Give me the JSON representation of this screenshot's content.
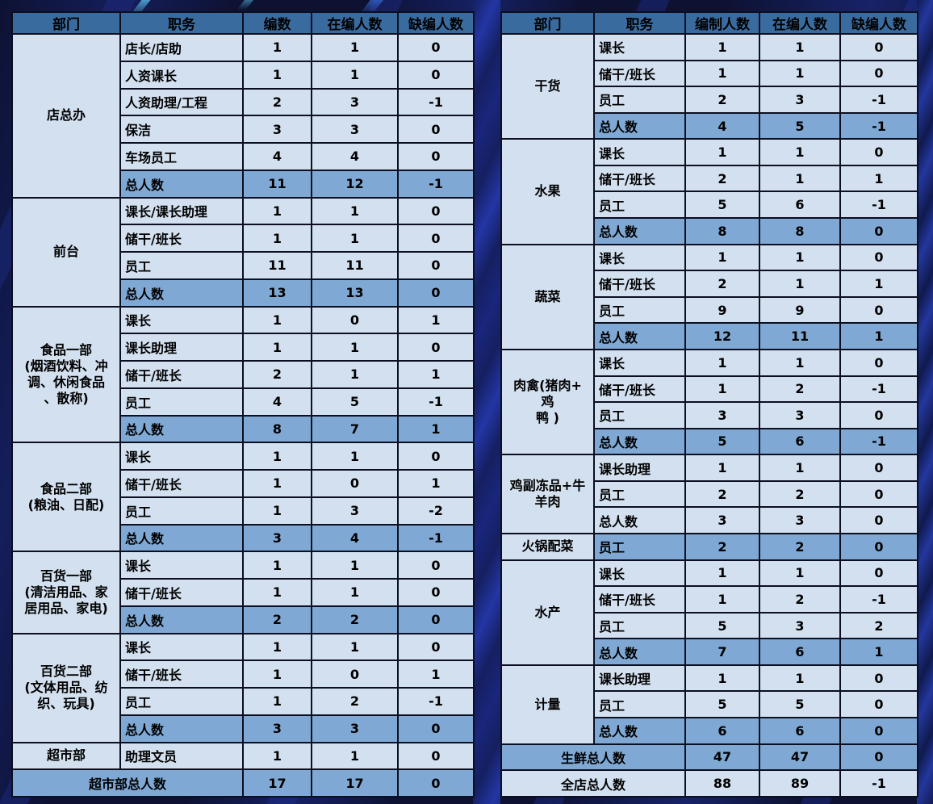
{
  "colors": {
    "background": "#0d1233",
    "header_bg": "#3a6b9e",
    "cell_bg": "#d3e0ef",
    "total_row_bg": "#7fa9d4",
    "border": "#0b0f1f",
    "text": "#000000"
  },
  "left_table": {
    "headers": [
      "部门",
      "职务",
      "编数",
      "在编人数",
      "缺编人数"
    ],
    "groups": [
      {
        "dept": "店总办",
        "rows": [
          {
            "pos": "店长/店助",
            "values": [
              "1",
              "1",
              "0"
            ],
            "shaded": false
          },
          {
            "pos": "人资课长",
            "values": [
              "1",
              "1",
              "0"
            ],
            "shaded": false
          },
          {
            "pos": "人资助理/工程",
            "values": [
              "2",
              "3",
              "-1"
            ],
            "shaded": false
          },
          {
            "pos": "保洁",
            "values": [
              "3",
              "3",
              "0"
            ],
            "shaded": false
          },
          {
            "pos": "车场员工",
            "values": [
              "4",
              "4",
              "0"
            ],
            "shaded": false
          },
          {
            "pos": "总人数",
            "values": [
              "11",
              "12",
              "-1"
            ],
            "shaded": true
          }
        ]
      },
      {
        "dept": "前台",
        "rows": [
          {
            "pos": "课长/课长助理",
            "values": [
              "1",
              "1",
              "0"
            ],
            "shaded": false
          },
          {
            "pos": "储干/班长",
            "values": [
              "1",
              "1",
              "0"
            ],
            "shaded": false
          },
          {
            "pos": "员工",
            "values": [
              "11",
              "11",
              "0"
            ],
            "shaded": false
          },
          {
            "pos": "总人数",
            "values": [
              "13",
              "13",
              "0"
            ],
            "shaded": true
          }
        ]
      },
      {
        "dept": "食品一部\n(烟酒饮料、冲\n调、休闲食品\n、散称)",
        "rows": [
          {
            "pos": "课长",
            "values": [
              "1",
              "0",
              "1"
            ],
            "shaded": false
          },
          {
            "pos": "课长助理",
            "values": [
              "1",
              "1",
              "0"
            ],
            "shaded": false
          },
          {
            "pos": "储干/班长",
            "values": [
              "2",
              "1",
              "1"
            ],
            "shaded": false
          },
          {
            "pos": "员工",
            "values": [
              "4",
              "5",
              "-1"
            ],
            "shaded": false
          },
          {
            "pos": "总人数",
            "values": [
              "8",
              "7",
              "1"
            ],
            "shaded": true
          }
        ]
      },
      {
        "dept": "食品二部\n(粮油、日配)",
        "rows": [
          {
            "pos": "课长",
            "values": [
              "1",
              "1",
              "0"
            ],
            "shaded": false
          },
          {
            "pos": "储干/班长",
            "values": [
              "1",
              "0",
              "1"
            ],
            "shaded": false
          },
          {
            "pos": "员工",
            "values": [
              "1",
              "3",
              "-2"
            ],
            "shaded": false
          },
          {
            "pos": "总人数",
            "values": [
              "3",
              "4",
              "-1"
            ],
            "shaded": true
          }
        ]
      },
      {
        "dept": "百货一部\n(清洁用品、家\n居用品、家电)",
        "rows": [
          {
            "pos": "课长",
            "values": [
              "1",
              "1",
              "0"
            ],
            "shaded": false
          },
          {
            "pos": "储干/班长",
            "values": [
              "1",
              "1",
              "0"
            ],
            "shaded": false
          },
          {
            "pos": "总人数",
            "values": [
              "2",
              "2",
              "0"
            ],
            "shaded": true
          }
        ]
      },
      {
        "dept": "百货二部\n(文体用品、纺\n织、玩具)",
        "rows": [
          {
            "pos": "课长",
            "values": [
              "1",
              "1",
              "0"
            ],
            "shaded": false
          },
          {
            "pos": "储干/班长",
            "values": [
              "1",
              "0",
              "1"
            ],
            "shaded": false
          },
          {
            "pos": "员工",
            "values": [
              "1",
              "2",
              "-1"
            ],
            "shaded": false
          },
          {
            "pos": "总人数",
            "values": [
              "3",
              "3",
              "0"
            ],
            "shaded": true
          }
        ]
      },
      {
        "dept": "超市部",
        "rows": [
          {
            "pos": "助理文员",
            "values": [
              "1",
              "1",
              "0"
            ],
            "shaded": false
          }
        ]
      }
    ],
    "footers": [
      {
        "label": "超市部总人数",
        "values": [
          "17",
          "17",
          "0"
        ],
        "shaded": true
      }
    ]
  },
  "right_table": {
    "headers": [
      "部门",
      "职务",
      "编制人数",
      "在编人数",
      "缺编人数"
    ],
    "groups": [
      {
        "dept": "干货",
        "rows": [
          {
            "pos": "课长",
            "values": [
              "1",
              "1",
              "0"
            ],
            "shaded": false
          },
          {
            "pos": "储干/班长",
            "values": [
              "1",
              "1",
              "0"
            ],
            "shaded": false
          },
          {
            "pos": "员工",
            "values": [
              "2",
              "3",
              "-1"
            ],
            "shaded": false
          },
          {
            "pos": "总人数",
            "values": [
              "4",
              "5",
              "-1"
            ],
            "shaded": true
          }
        ]
      },
      {
        "dept": "水果",
        "rows": [
          {
            "pos": "课长",
            "values": [
              "1",
              "1",
              "0"
            ],
            "shaded": false
          },
          {
            "pos": "储干/班长",
            "values": [
              "2",
              "1",
              "1"
            ],
            "shaded": false
          },
          {
            "pos": "员工",
            "values": [
              "5",
              "6",
              "-1"
            ],
            "shaded": false
          },
          {
            "pos": "总人数",
            "values": [
              "8",
              "8",
              "0"
            ],
            "shaded": true
          }
        ]
      },
      {
        "dept": "蔬菜",
        "rows": [
          {
            "pos": "课长",
            "values": [
              "1",
              "1",
              "0"
            ],
            "shaded": false
          },
          {
            "pos": "储干/班长",
            "values": [
              "2",
              "1",
              "1"
            ],
            "shaded": false
          },
          {
            "pos": "员工",
            "values": [
              "9",
              "9",
              "0"
            ],
            "shaded": false
          },
          {
            "pos": "总人数",
            "values": [
              "12",
              "11",
              "1"
            ],
            "shaded": true
          }
        ]
      },
      {
        "dept": "肉禽(猪肉+\n鸡\n鸭 )",
        "rows": [
          {
            "pos": "课长",
            "values": [
              "1",
              "1",
              "0"
            ],
            "shaded": false
          },
          {
            "pos": "储干/班长",
            "values": [
              "1",
              "2",
              "-1"
            ],
            "shaded": false
          },
          {
            "pos": "员工",
            "values": [
              "3",
              "3",
              "0"
            ],
            "shaded": false
          },
          {
            "pos": "总人数",
            "values": [
              "5",
              "6",
              "-1"
            ],
            "shaded": true
          }
        ]
      },
      {
        "dept": "鸡副冻品+牛\n羊肉",
        "rows": [
          {
            "pos": "课长助理",
            "values": [
              "1",
              "1",
              "0"
            ],
            "shaded": false
          },
          {
            "pos": "员工",
            "values": [
              "2",
              "2",
              "0"
            ],
            "shaded": false
          },
          {
            "pos": "总人数",
            "values": [
              "3",
              "3",
              "0"
            ],
            "shaded": false
          }
        ]
      },
      {
        "dept": "火锅配菜",
        "rows": [
          {
            "pos": "员工",
            "values": [
              "2",
              "2",
              "0"
            ],
            "shaded": true
          }
        ]
      },
      {
        "dept": "水产",
        "rows": [
          {
            "pos": "课长",
            "values": [
              "1",
              "1",
              "0"
            ],
            "shaded": false
          },
          {
            "pos": "储干/班长",
            "values": [
              "1",
              "2",
              "-1"
            ],
            "shaded": false
          },
          {
            "pos": "员工",
            "values": [
              "5",
              "3",
              "2"
            ],
            "shaded": false
          },
          {
            "pos": "总人数",
            "values": [
              "7",
              "6",
              "1"
            ],
            "shaded": true
          }
        ]
      },
      {
        "dept": "计量",
        "rows": [
          {
            "pos": "课长助理",
            "values": [
              "1",
              "1",
              "0"
            ],
            "shaded": false
          },
          {
            "pos": "员工",
            "values": [
              "5",
              "5",
              "0"
            ],
            "shaded": false
          },
          {
            "pos": "总人数",
            "values": [
              "6",
              "6",
              "0"
            ],
            "shaded": true
          }
        ]
      }
    ],
    "footers": [
      {
        "label": "生鲜总人数",
        "values": [
          "47",
          "47",
          "0"
        ],
        "shaded": true
      },
      {
        "label": "全店总人数",
        "values": [
          "88",
          "89",
          "-1"
        ],
        "shaded": false
      }
    ]
  }
}
